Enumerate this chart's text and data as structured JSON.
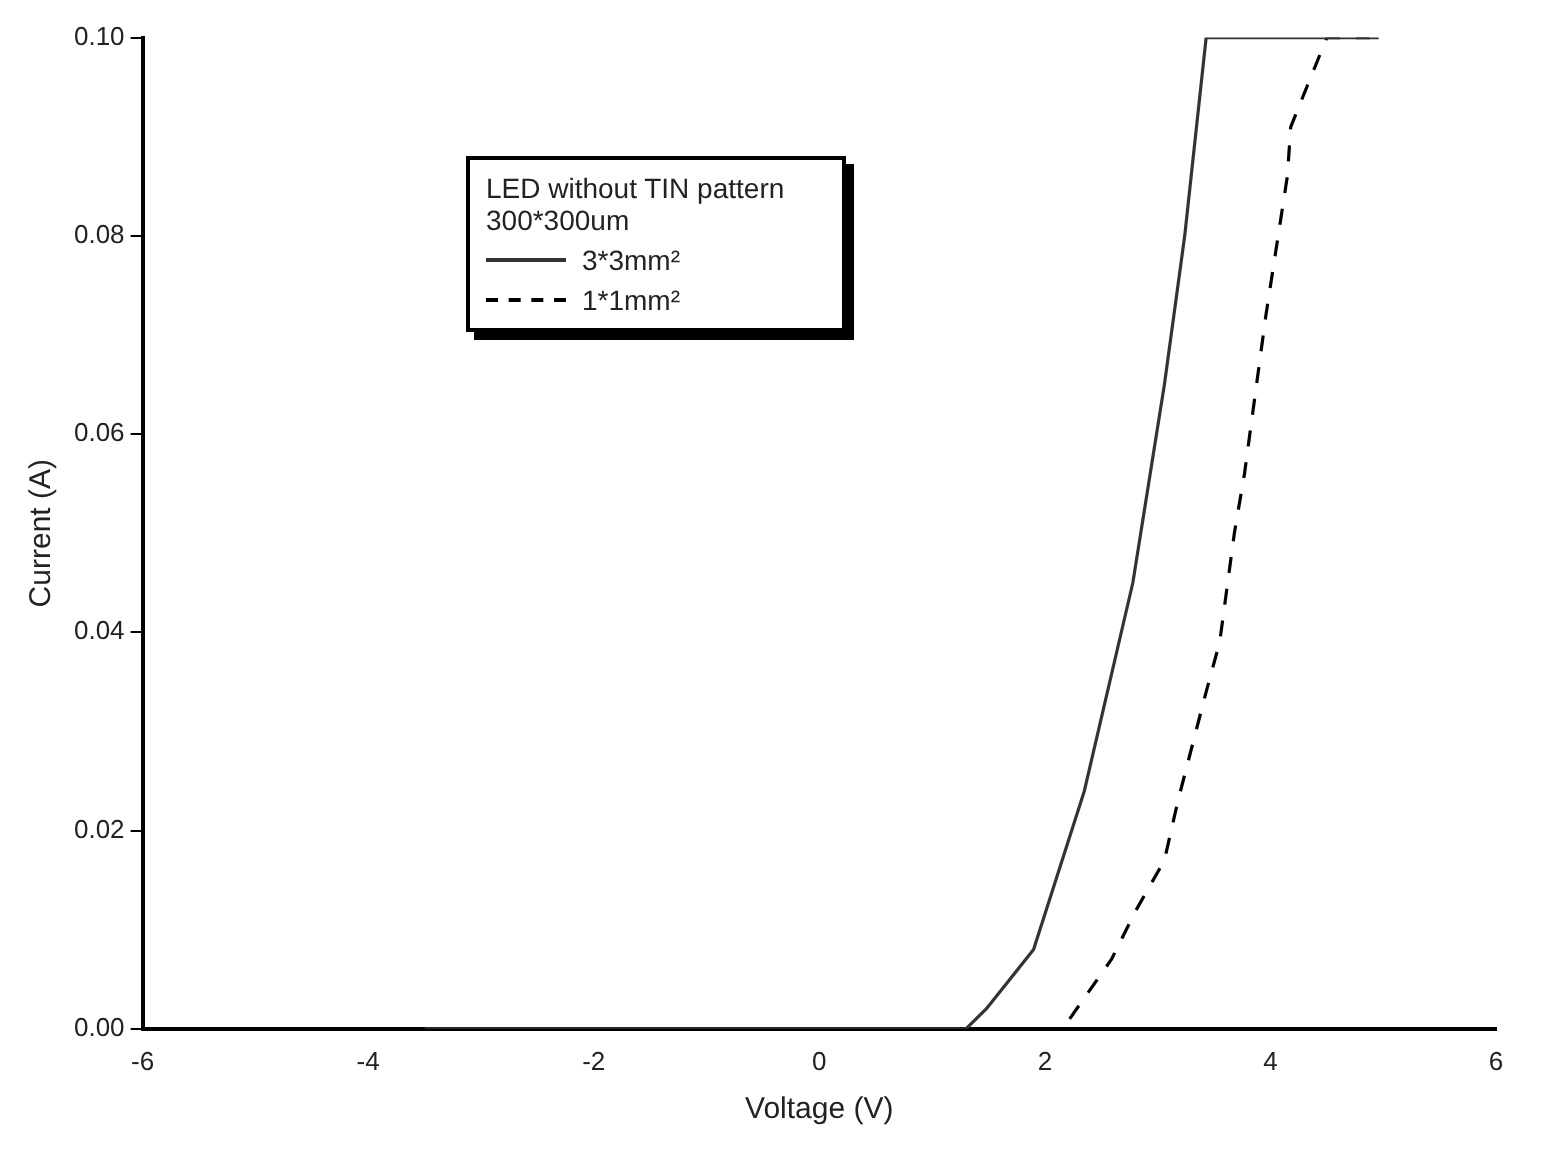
{
  "chart_data": {
    "type": "line",
    "xlabel": "Voltage (V)",
    "ylabel": "Current (A)",
    "legend_title": "LED without TIN pattern 300*300um",
    "legend": "top left",
    "grid": false,
    "marker": "none",
    "xlim": [
      -6,
      6
    ],
    "xticks": [
      -6,
      -4,
      -2,
      0,
      2,
      4,
      6
    ],
    "ylim": [
      0,
      0.1
    ],
    "yticks": [
      {
        "value": 0,
        "label": "0.00"
      },
      {
        "value": 0.02,
        "label": "0.02"
      },
      {
        "value": 0.04,
        "label": "0.04"
      },
      {
        "value": 0.06,
        "label": "0.06"
      },
      {
        "value": 0.08,
        "label": "0.08"
      },
      {
        "value": 0.1,
        "label": "0.10"
      }
    ],
    "series": [
      {
        "name": "3*3mm²",
        "color": "#333333",
        "line_style": "solid",
        "x": [
          -3.5,
          1.3,
          1.48,
          1.9,
          2.35,
          2.78,
          3.06,
          3.24,
          3.43,
          4.96
        ],
        "values": [
          0,
          0,
          0.002,
          0.008,
          0.024,
          0.045,
          0.065,
          0.08,
          0.1,
          0.1
        ]
      },
      {
        "name": "1*1mm²",
        "color": "#000000",
        "line_style": "dashed",
        "x": [
          2.22,
          2.59,
          2.81,
          3.06,
          3.18,
          3.43,
          3.55,
          3.68,
          3.77,
          3.96,
          4.15,
          4.18,
          4.5,
          4.88
        ],
        "values": [
          0.001,
          0.007,
          0.012,
          0.017,
          0.023,
          0.034,
          0.039,
          0.05,
          0.056,
          0.072,
          0.086,
          0.091,
          0.1,
          0.1
        ]
      }
    ]
  }
}
